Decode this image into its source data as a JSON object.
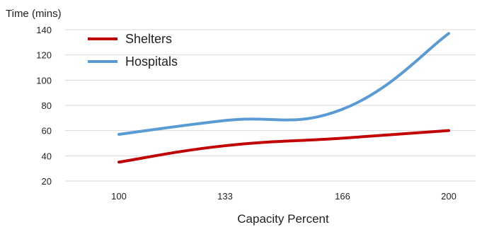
{
  "chart_data": {
    "type": "line",
    "ylabel": "Time (mins)",
    "xlabel": "Capacity Percent",
    "categories": [
      "100",
      "133",
      "166",
      "200"
    ],
    "ylim": [
      20,
      140
    ],
    "yticks": [
      "20",
      "40",
      "60",
      "80",
      "100",
      "120",
      "140"
    ],
    "grid": true,
    "legend_position": "top-left",
    "series": [
      {
        "name": "Shelters",
        "color": "#c00000",
        "values": [
          35,
          48,
          54,
          60
        ]
      },
      {
        "name": "Hospitals",
        "color": "#5b9bd5",
        "values": [
          57,
          68,
          77,
          137
        ]
      }
    ]
  }
}
